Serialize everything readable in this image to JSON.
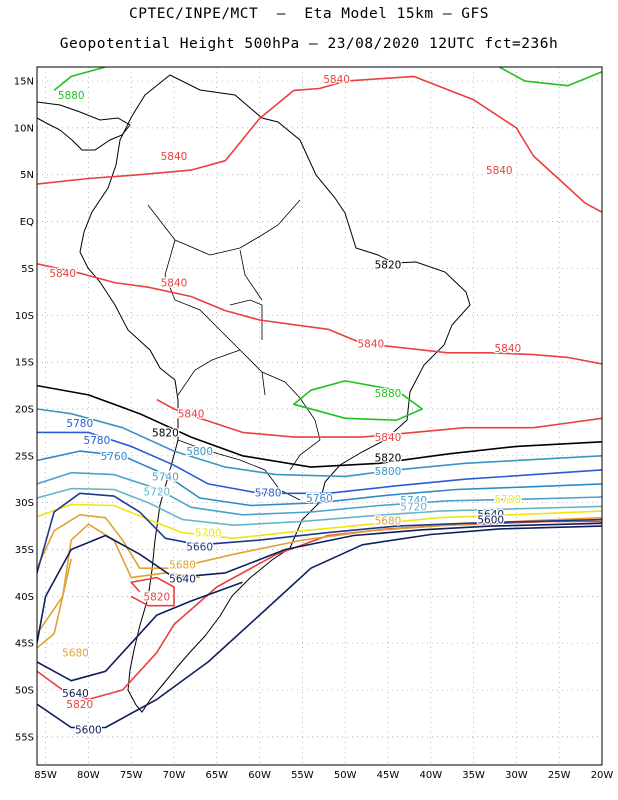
{
  "header": {
    "line1": "CPTEC/INPE/MCT  –  Eta Model 15km – GFS",
    "line2": "Geopotential Height 500hPa – 23/08/2020 12UTC fct=236h"
  },
  "axes": {
    "lat_labels": [
      "15N",
      "10N",
      "5N",
      "EQ",
      "5S",
      "10S",
      "15S",
      "20S",
      "25S",
      "30S",
      "35S",
      "40S",
      "45S",
      "50S",
      "55S"
    ],
    "lat_values": [
      15,
      10,
      5,
      0,
      -5,
      -10,
      -15,
      -20,
      -25,
      -30,
      -35,
      -40,
      -45,
      -50,
      -55
    ],
    "lon_labels": [
      "85W",
      "80W",
      "75W",
      "70W",
      "65W",
      "60W",
      "55W",
      "50W",
      "45W",
      "40W",
      "35W",
      "30W",
      "25W",
      "20W"
    ],
    "lon_values": [
      -85,
      -80,
      -75,
      -70,
      -65,
      -60,
      -55,
      -50,
      -45,
      -40,
      -35,
      -30,
      -25,
      -20
    ],
    "lon_range": [
      -86,
      -20
    ],
    "lat_range": [
      -58,
      16.5
    ]
  },
  "contours": [
    {
      "level": "5880",
      "color": "#1fc21f",
      "lines": [
        [
          [
            -84,
            14
          ],
          [
            -82,
            15.5
          ],
          [
            -78,
            16.5
          ]
        ],
        [
          [
            -32,
            16.5
          ],
          [
            -29,
            15
          ],
          [
            -24,
            14.5
          ],
          [
            -20,
            16
          ]
        ],
        [
          [
            -54,
            -18
          ],
          [
            -56,
            -19.5
          ],
          [
            -50,
            -21
          ],
          [
            -44,
            -21.2
          ],
          [
            -41,
            -20
          ],
          [
            -44,
            -18
          ],
          [
            -50,
            -17
          ],
          [
            -54,
            -18
          ]
        ]
      ],
      "labels": [
        {
          "text": "5880",
          "lon": -82,
          "lat": 13.5
        },
        {
          "text": "5880",
          "lon": -45,
          "lat": -18.3
        }
      ]
    },
    {
      "level": "5840",
      "color": "#e8413e",
      "lines": [
        [
          [
            -86,
            4
          ],
          [
            -80,
            4.6
          ],
          [
            -74,
            5
          ],
          [
            -68,
            5.5
          ],
          [
            -64,
            6.5
          ],
          [
            -60,
            11
          ],
          [
            -56,
            14
          ],
          [
            -53,
            14.2
          ],
          [
            -50,
            15
          ],
          [
            -42,
            15.5
          ],
          [
            -35,
            13
          ],
          [
            -30,
            10
          ],
          [
            -28,
            7
          ],
          [
            -25,
            4.5
          ],
          [
            -22,
            2
          ],
          [
            -20,
            1
          ]
        ],
        [
          [
            -86,
            -4.5
          ],
          [
            -81,
            -5.5
          ],
          [
            -77,
            -6.5
          ],
          [
            -73,
            -7
          ],
          [
            -68,
            -8
          ],
          [
            -64,
            -9.5
          ],
          [
            -60,
            -10.5
          ],
          [
            -56,
            -11
          ],
          [
            -52,
            -11.5
          ],
          [
            -48,
            -13
          ],
          [
            -43,
            -13.5
          ],
          [
            -38,
            -14
          ],
          [
            -33,
            -14
          ],
          [
            -28,
            -14.2
          ],
          [
            -24,
            -14.5
          ],
          [
            -20,
            -15.2
          ]
        ],
        [
          [
            -72,
            -19
          ],
          [
            -70,
            -20
          ],
          [
            -67,
            -21
          ],
          [
            -62,
            -22.5
          ],
          [
            -56,
            -23
          ],
          [
            -48,
            -23
          ],
          [
            -42,
            -22.5
          ],
          [
            -36,
            -22
          ],
          [
            -28,
            -22
          ],
          [
            -24,
            -21.5
          ],
          [
            -20,
            -21
          ]
        ],
        [
          [
            -74,
            -39.5
          ],
          [
            -75,
            -38.5
          ],
          [
            -72,
            -38
          ],
          [
            -70,
            -39
          ],
          [
            -70,
            -41
          ],
          [
            -73,
            -41
          ],
          [
            -75,
            -40
          ]
        ],
        [
          [
            -86,
            -48
          ],
          [
            -83,
            -50
          ],
          [
            -80,
            -51
          ],
          [
            -76,
            -50
          ],
          [
            -72,
            -46
          ],
          [
            -70,
            -43
          ],
          [
            -65,
            -39
          ],
          [
            -58,
            -35.5
          ],
          [
            -52,
            -33.5
          ],
          [
            -45,
            -32.8
          ],
          [
            -38,
            -32.4
          ],
          [
            -32,
            -32.2
          ],
          [
            -26,
            -32
          ],
          [
            -20,
            -32
          ]
        ]
      ],
      "labels": [
        {
          "text": "5840",
          "lon": -51,
          "lat": 15.2
        },
        {
          "text": "5840",
          "lon": -70,
          "lat": 7
        },
        {
          "text": "5840",
          "lon": -32,
          "lat": 5.5
        },
        {
          "text": "5840",
          "lon": -83,
          "lat": -5.5
        },
        {
          "text": "5840",
          "lon": -70,
          "lat": -6.5
        },
        {
          "text": "5840",
          "lon": -47,
          "lat": -13
        },
        {
          "text": "5840",
          "lon": -31,
          "lat": -13.5
        },
        {
          "text": "5840",
          "lon": -68,
          "lat": -20.5
        },
        {
          "text": "5840",
          "lon": -45,
          "lat": -23
        },
        {
          "text": "5820",
          "lon": -72,
          "lat": -40
        },
        {
          "text": "5820",
          "lon": -81,
          "lat": -51.5
        }
      ]
    },
    {
      "level": "5820",
      "color": "#000000",
      "lines": [
        [
          [
            -86,
            -17.5
          ],
          [
            -80,
            -18.5
          ],
          [
            -74,
            -20.5
          ],
          [
            -68,
            -23
          ],
          [
            -62,
            -25
          ],
          [
            -54,
            -26.2
          ],
          [
            -46,
            -25.8
          ],
          [
            -38,
            -24.8
          ],
          [
            -30,
            -24
          ],
          [
            -20,
            -23.5
          ]
        ]
      ],
      "labels": [
        {
          "text": "5820",
          "lon": -45,
          "lat": -4.6
        },
        {
          "text": "5820",
          "lon": -71,
          "lat": -22.5
        },
        {
          "text": "5820",
          "lon": -45,
          "lat": -25.2
        }
      ]
    },
    {
      "level": "5800",
      "color": "#3a95c2",
      "lines": [
        [
          [
            -86,
            -20
          ],
          [
            -82,
            -20.5
          ],
          [
            -76,
            -22
          ],
          [
            -70,
            -24.5
          ],
          [
            -64,
            -26.2
          ],
          [
            -58,
            -27
          ],
          [
            -50,
            -27.2
          ],
          [
            -44,
            -26.5
          ],
          [
            -36,
            -25.8
          ],
          [
            -28,
            -25.4
          ],
          [
            -20,
            -25
          ]
        ]
      ],
      "labels": [
        {
          "text": "5800",
          "lon": -67,
          "lat": -24.5
        },
        {
          "text": "5800",
          "lon": -45,
          "lat": -26.6
        }
      ]
    },
    {
      "level": "5780",
      "color": "#2a5bd7",
      "lines": [
        [
          [
            -86,
            -22.5
          ],
          [
            -80,
            -22.5
          ],
          [
            -75,
            -24
          ],
          [
            -70,
            -26
          ],
          [
            -66,
            -28
          ],
          [
            -60,
            -29
          ],
          [
            -52,
            -29
          ],
          [
            -44,
            -28.2
          ],
          [
            -36,
            -27.5
          ],
          [
            -28,
            -27
          ],
          [
            -20,
            -26.5
          ]
        ]
      ],
      "labels": [
        {
          "text": "5780",
          "lon": -81,
          "lat": -21.5
        },
        {
          "text": "5780",
          "lon": -79,
          "lat": -23.3
        },
        {
          "text": "5780",
          "lon": -59,
          "lat": -28.9
        }
      ]
    },
    {
      "level": "5760",
      "color": "#3088c8",
      "lines": [
        [
          [
            -86,
            -25.5
          ],
          [
            -81,
            -24.5
          ],
          [
            -76,
            -25
          ],
          [
            -71,
            -27
          ],
          [
            -67,
            -29.5
          ],
          [
            -61,
            -30.3
          ],
          [
            -53,
            -30
          ],
          [
            -45,
            -29.2
          ],
          [
            -37,
            -28.6
          ],
          [
            -28,
            -28.3
          ],
          [
            -20,
            -28
          ]
        ]
      ],
      "labels": [
        {
          "text": "5760",
          "lon": -77,
          "lat": -25
        },
        {
          "text": "5760",
          "lon": -53,
          "lat": -29.5
        }
      ]
    },
    {
      "level": "5740",
      "color": "#4aa3c9",
      "lines": [
        [
          [
            -86,
            -28
          ],
          [
            -82,
            -26.8
          ],
          [
            -77,
            -27
          ],
          [
            -72,
            -28.5
          ],
          [
            -68,
            -30.5
          ],
          [
            -62,
            -31.3
          ],
          [
            -54,
            -31
          ],
          [
            -46,
            -30.3
          ],
          [
            -38,
            -29.8
          ],
          [
            -28,
            -29.6
          ],
          [
            -20,
            -29.4
          ]
        ]
      ],
      "labels": [
        {
          "text": "5740",
          "lon": -71,
          "lat": -27.2
        },
        {
          "text": "5740",
          "lon": -42,
          "lat": -29.7
        }
      ]
    },
    {
      "level": "5720",
      "color": "#66b6c9",
      "lines": [
        [
          [
            -86,
            -29.5
          ],
          [
            -82,
            -28.5
          ],
          [
            -77,
            -28.6
          ],
          [
            -73,
            -30
          ],
          [
            -69,
            -31.8
          ],
          [
            -63,
            -32.4
          ],
          [
            -55,
            -32
          ],
          [
            -47,
            -31.4
          ],
          [
            -39,
            -30.9
          ],
          [
            -28,
            -30.6
          ],
          [
            -20,
            -30.4
          ]
        ]
      ],
      "labels": [
        {
          "text": "5720",
          "lon": -72,
          "lat": -28.8
        },
        {
          "text": "5720",
          "lon": -42,
          "lat": -30.4
        }
      ]
    },
    {
      "level": "5700",
      "color": "#f0e510",
      "lines": [
        [
          [
            -86,
            -31.5
          ],
          [
            -82,
            -30.2
          ],
          [
            -77,
            -30.3
          ],
          [
            -73,
            -31.8
          ],
          [
            -69,
            -33.2
          ],
          [
            -63,
            -33.8
          ],
          [
            -55,
            -33
          ],
          [
            -47,
            -32.3
          ],
          [
            -39,
            -31.6
          ],
          [
            -28,
            -31.2
          ],
          [
            -20,
            -30.9
          ]
        ]
      ],
      "labels": [
        {
          "text": "5700",
          "lon": -66,
          "lat": -33.2
        },
        {
          "text": "5700",
          "lon": -31,
          "lat": -29.6
        }
      ]
    },
    {
      "level": "5680",
      "color": "#e0a232",
      "lines": [
        [
          [
            -86,
            -37
          ],
          [
            -84,
            -33
          ],
          [
            -81,
            -31.3
          ],
          [
            -78,
            -31.6
          ],
          [
            -76,
            -34
          ],
          [
            -74,
            -37
          ],
          [
            -70,
            -37
          ],
          [
            -63,
            -35.5
          ],
          [
            -55,
            -34
          ],
          [
            -47,
            -33
          ],
          [
            -38,
            -32.4
          ],
          [
            -28,
            -31.9
          ],
          [
            -20,
            -31.6
          ]
        ],
        [
          [
            -86,
            -44
          ],
          [
            -83,
            -40
          ],
          [
            -82,
            -34
          ],
          [
            -80,
            -32.3
          ],
          [
            -77,
            -34
          ],
          [
            -75,
            -38
          ],
          [
            -71,
            -37.5
          ],
          [
            -67,
            -38
          ]
        ],
        [
          [
            -86,
            -45.5
          ],
          [
            -84,
            -44
          ],
          [
            -83,
            -40
          ],
          [
            -82,
            -36
          ]
        ]
      ],
      "labels": [
        {
          "text": "5680",
          "lon": -69,
          "lat": -36.6
        },
        {
          "text": "5680",
          "lon": -45,
          "lat": -31.9
        },
        {
          "text": "5680",
          "lon": -81.5,
          "lat": -46
        }
      ]
    },
    {
      "level": "5660",
      "color": "#1a3a8c",
      "lines": [
        [
          [
            -86,
            -37.5
          ],
          [
            -84,
            -31
          ],
          [
            -81,
            -29
          ],
          [
            -77,
            -29.3
          ],
          [
            -74,
            -31
          ],
          [
            -71,
            -33.8
          ],
          [
            -67,
            -34.5
          ],
          [
            -60,
            -34
          ],
          [
            -52,
            -33.2
          ],
          [
            -44,
            -32.5
          ],
          [
            -36,
            -32.2
          ],
          [
            -28,
            -32
          ],
          [
            -20,
            -31.8
          ]
        ]
      ],
      "labels": [
        {
          "text": "5660",
          "lon": -67,
          "lat": -34.7
        }
      ]
    },
    {
      "level": "5640",
      "color": "#0e1f5c",
      "lines": [
        [
          [
            -86,
            -45
          ],
          [
            -85,
            -40
          ],
          [
            -82,
            -35
          ],
          [
            -78,
            -33.5
          ],
          [
            -74,
            -35.5
          ],
          [
            -70,
            -38
          ],
          [
            -64,
            -37.5
          ],
          [
            -57,
            -35
          ],
          [
            -49,
            -33.5
          ],
          [
            -41,
            -32.9
          ],
          [
            -33,
            -32.5
          ],
          [
            -20,
            -32.2
          ]
        ],
        [
          [
            -86,
            -47
          ],
          [
            -82,
            -49
          ],
          [
            -78,
            -48
          ],
          [
            -75,
            -45
          ],
          [
            -72,
            -42
          ],
          [
            -68,
            -40.5
          ],
          [
            -62,
            -38.5
          ]
        ]
      ],
      "labels": [
        {
          "text": "5640",
          "lon": -69,
          "lat": -38.1
        },
        {
          "text": "5640",
          "lon": -33,
          "lat": -31.2
        },
        {
          "text": "5640",
          "lon": -81.5,
          "lat": -50.3
        }
      ]
    },
    {
      "level": "5600",
      "color": "#0e1f5c",
      "lines": [
        [
          [
            -86,
            -51.5
          ],
          [
            -82,
            -54
          ],
          [
            -78,
            -54
          ],
          [
            -72,
            -51
          ],
          [
            -66,
            -47
          ],
          [
            -60,
            -42
          ],
          [
            -54,
            -37
          ],
          [
            -48,
            -34.5
          ],
          [
            -40,
            -33.4
          ],
          [
            -32,
            -32.8
          ],
          [
            -20,
            -32.5
          ]
        ]
      ],
      "labels": [
        {
          "text": "5600",
          "lon": -80,
          "lat": -54.2
        },
        {
          "text": "5600",
          "lon": -33,
          "lat": -31.8
        }
      ]
    }
  ]
}
